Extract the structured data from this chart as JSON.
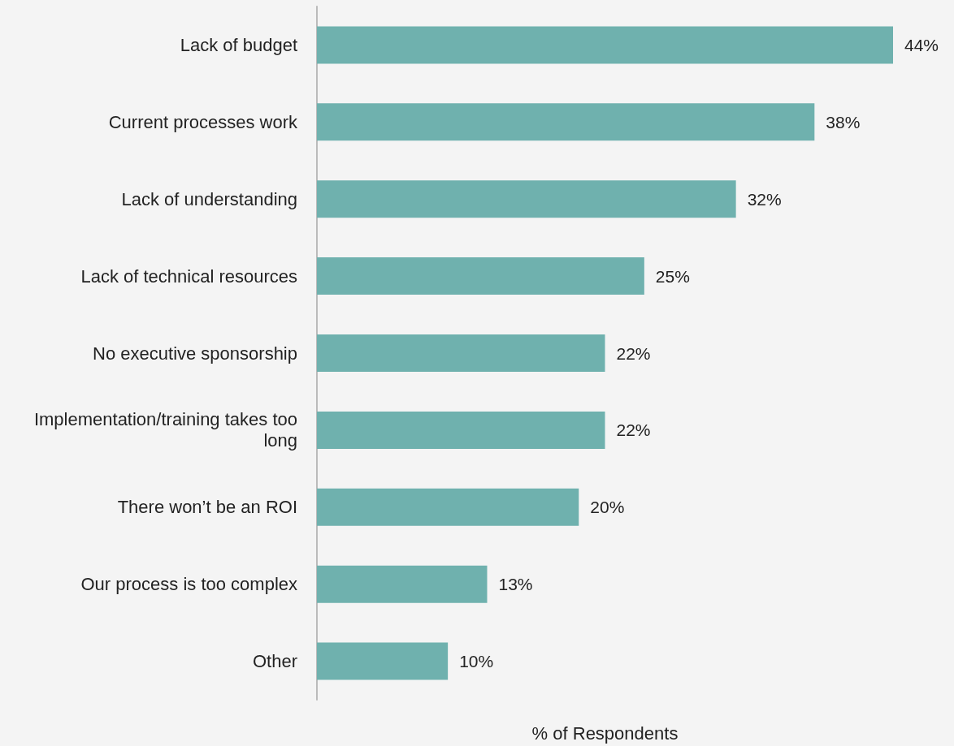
{
  "chart_data": {
    "type": "bar",
    "orientation": "horizontal",
    "xlabel": "% of Respondents",
    "categories": [
      "Lack of budget",
      "Current processes work",
      "Lack of understanding",
      "Lack of technical resources",
      "No executive sponsorship",
      "Implementation/training takes too long",
      "There won’t be an ROI",
      "Our process is too complex",
      "Other"
    ],
    "values": [
      44,
      38,
      32,
      25,
      22,
      22,
      20,
      13,
      10
    ],
    "value_labels": [
      "44%",
      "38%",
      "32%",
      "25%",
      "22%",
      "22%",
      "20%",
      "13%",
      "10%"
    ],
    "color": "#6fb1ae",
    "grid": false
  }
}
